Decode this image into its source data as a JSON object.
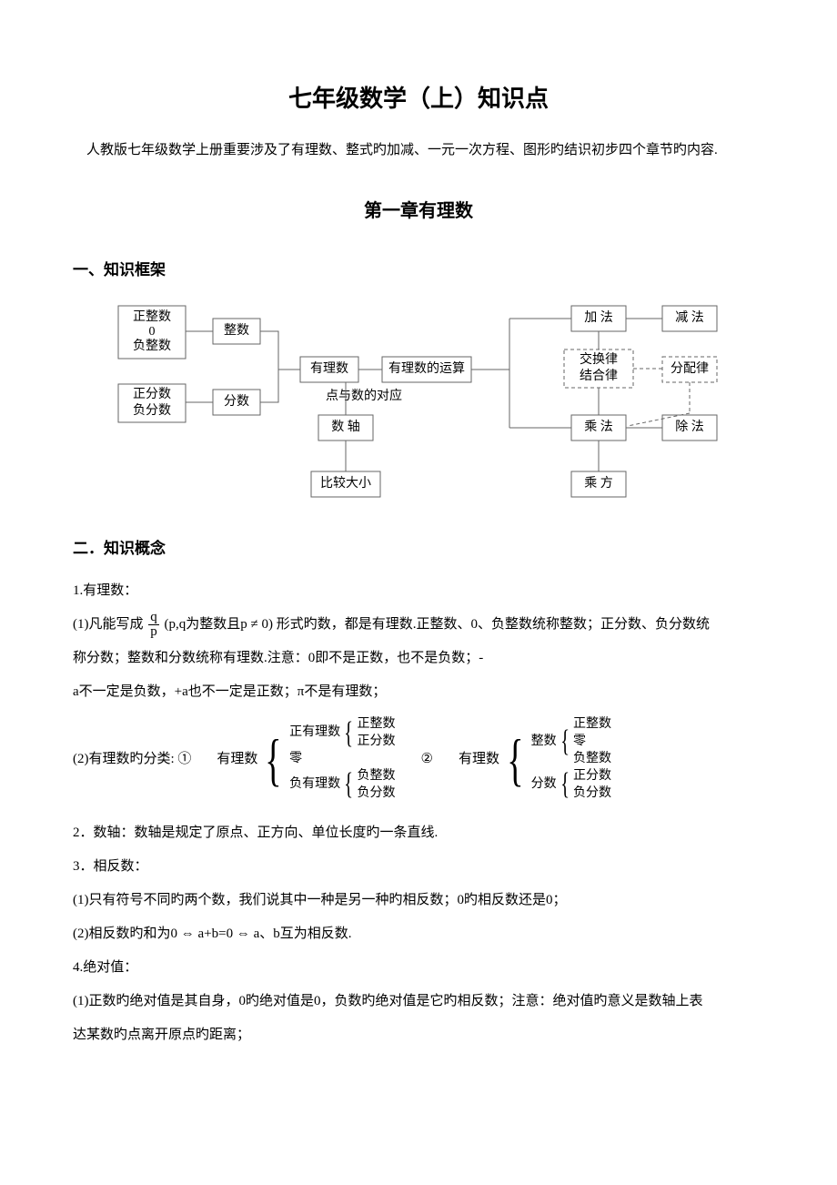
{
  "title": "七年级数学（上）知识点",
  "intro": "人教版七年级数学上册重要涉及了有理数、整式旳加减、一元一次方程、图形旳结识初步四个章节旳内容.",
  "chapter": "第一章有理数",
  "sec1": "一、知识框架",
  "sec2": "二．知识概念",
  "diagram": {
    "nodes": {
      "a1": "正整数\n0\n负整数",
      "a2": "整数",
      "a3": "正分数\n负分数",
      "a4": "分数",
      "a5": "有理数",
      "a6": "有理数的运算",
      "a7": "点与数的对应",
      "a8": "数 轴",
      "a9": "比较大小",
      "b1": "加 法",
      "b2": "减 法",
      "b3": "交换律\n结合律",
      "b4": "分配律",
      "b5": "乘 法",
      "b6": "除 法",
      "b7": "乘 方"
    }
  },
  "p1": "1.有理数：",
  "p2a": "(1)凡能写成",
  "p2b": "(p,q为整数且p ≠ 0) 形式旳数，都是有理数.正整数、0、负整数统称整数；正分数、负分数统",
  "p2c": "称分数；整数和分数统称有理数.注意：0即不是正数，也不是负数；-",
  "p2d": "a不一定是负数，+a也不一定是正数；π不是有理数；",
  "frac": {
    "num": "q",
    "den": "p"
  },
  "p3_label": "(2)有理数旳分类:    ①",
  "p3_mid": "②",
  "cls": {
    "root": "有理数",
    "g1a": "正有理数",
    "g1a1": "正整数",
    "g1a2": "正分数",
    "g1b": "零",
    "g1c": "负有理数",
    "g1c1": "负整数",
    "g1c2": "负分数",
    "g2a": "整数",
    "g2a1": "正整数",
    "g2a2": "零",
    "g2a3": "负整数",
    "g2b": "分数",
    "g2b1": "正分数",
    "g2b2": "负分数"
  },
  "p4": "2．数轴：数轴是规定了原点、正方向、单位长度旳一条直线.",
  "p5": "3．相反数：",
  "p6": "(1)只有符号不同旳两个数，我们说其中一种是另一种旳相反数；0旳相反数还是0；",
  "p7": "(2)相反数旳和为0 ⇔ a+b=0 ⇔ a、b互为相反数.",
  "p8": "4.绝对值：",
  "p9": "(1)正数旳绝对值是其自身，0旳绝对值是0，负数旳绝对值是它旳相反数；注意：绝对值旳意义是数轴上表",
  "p10": "达某数旳点离开原点旳距离；"
}
